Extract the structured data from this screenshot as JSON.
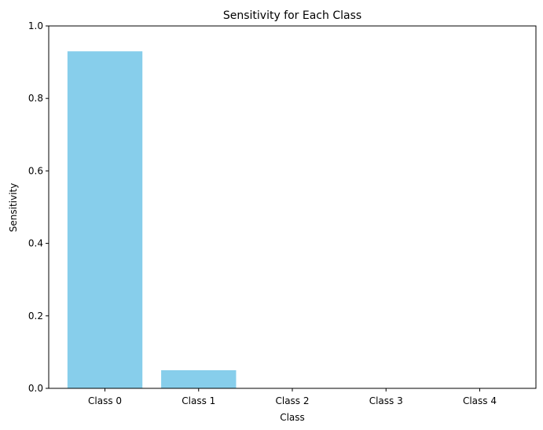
{
  "chart_data": {
    "type": "bar",
    "title": "Sensitivity for Each Class",
    "xlabel": "Class",
    "ylabel": "Sensitivity",
    "categories": [
      "Class 0",
      "Class 1",
      "Class 2",
      "Class 3",
      "Class 4"
    ],
    "values": [
      0.93,
      0.05,
      0.0,
      0.0,
      0.0
    ],
    "ylim": [
      0,
      1
    ],
    "yticks": [
      0.0,
      0.2,
      0.4,
      0.6,
      0.8,
      1.0
    ],
    "ytick_labels": [
      "0.0",
      "0.2",
      "0.4",
      "0.6",
      "0.8",
      "1.0"
    ],
    "bar_color": "#87ceeb",
    "grid": false,
    "legend": "none"
  }
}
